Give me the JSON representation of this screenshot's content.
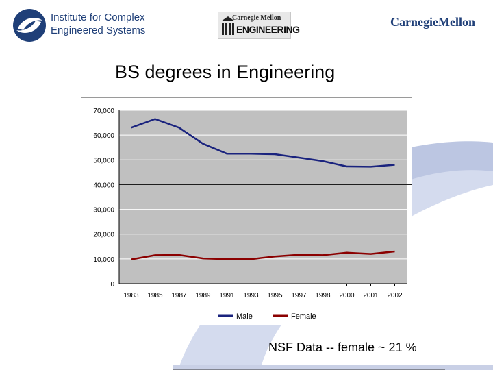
{
  "header": {
    "institute_line1": "Institute for Complex",
    "institute_line2": "Engineered Systems",
    "eng_logo_top": "Carnegie Mellon",
    "eng_logo_bottom": "ENGINEERING",
    "cmu_logo": "CarnegieMellon"
  },
  "slide": {
    "title": "BS degrees in Engineering",
    "note": "NSF Data  -- female ~  21 %"
  },
  "colors": {
    "plot_bg": "#c0c0c0",
    "male": "#1a237e",
    "female": "#8b0000",
    "brand_blue": "#1f3f78",
    "deco_blue": "#c9d0e6"
  },
  "chart_data": {
    "type": "line",
    "categories": [
      "1983",
      "1985",
      "1987",
      "1989",
      "1991",
      "1993",
      "1995",
      "1997",
      "1998",
      "2000",
      "2001",
      "2002"
    ],
    "series": [
      {
        "name": "Male",
        "values": [
          63000,
          66500,
          63000,
          56500,
          52500,
          52500,
          52300,
          50900,
          49500,
          47300,
          47200,
          48000
        ]
      },
      {
        "name": "Female",
        "values": [
          9800,
          11500,
          11600,
          10200,
          9900,
          9900,
          11000,
          11700,
          11500,
          12500,
          12000,
          13000
        ]
      }
    ],
    "y_ticks": [
      "0",
      "10,000",
      "20,000",
      "30,000",
      "40,000",
      "50,000",
      "60,000",
      "70,000"
    ],
    "ylim": [
      0,
      70000
    ],
    "grid": true,
    "legend_position": "bottom"
  }
}
